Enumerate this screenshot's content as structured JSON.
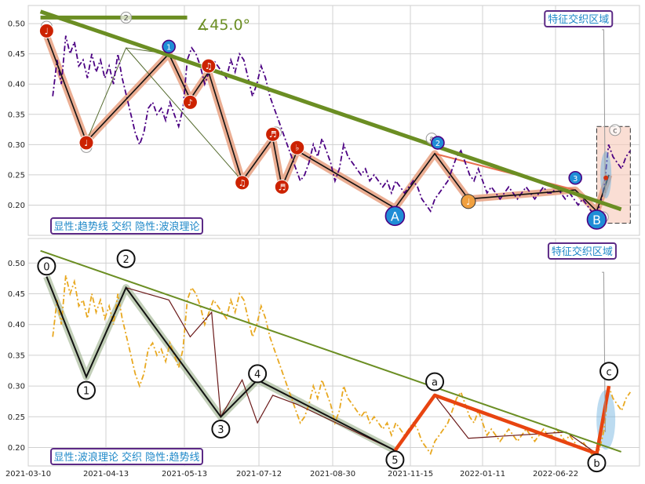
{
  "chart_data": [
    {
      "type": "line",
      "panel": "top",
      "x_ticks": [
        "2021-03-10",
        "2021-04-13",
        "2021-05-13",
        "2021-07-12",
        "2021-08-30",
        "2021-11-15",
        "2022-01-11",
        "2022-06-22"
      ],
      "ylim": [
        0.15,
        0.53
      ],
      "yticks": [
        0.2,
        0.25,
        0.3,
        0.35,
        0.4,
        0.45,
        0.5
      ],
      "grid": true,
      "annotation_angle": "∡45.0°",
      "zone_label": "特征交织区域",
      "mode_label": "显性:趋势线 交织 隐性:波浪理论",
      "price_series": {
        "name": "",
        "color": "#4b0082",
        "style": "dash-dot",
        "values": [
          0.38,
          0.44,
          0.4,
          0.48,
          0.45,
          0.47,
          0.43,
          0.44,
          0.41,
          0.45,
          0.42,
          0.44,
          0.41,
          0.43,
          0.4,
          0.45,
          0.41,
          0.38,
          0.35,
          0.32,
          0.3,
          0.32,
          0.36,
          0.37,
          0.35,
          0.36,
          0.34,
          0.37,
          0.35,
          0.33,
          0.36,
          0.44,
          0.46,
          0.45,
          0.43,
          0.4,
          0.42,
          0.44,
          0.43,
          0.42,
          0.41,
          0.44,
          0.42,
          0.45,
          0.44,
          0.41,
          0.38,
          0.4,
          0.43,
          0.41,
          0.38,
          0.36,
          0.34,
          0.32,
          0.3,
          0.28,
          0.26,
          0.24,
          0.25,
          0.27,
          0.3,
          0.28,
          0.31,
          0.29,
          0.27,
          0.24,
          0.26,
          0.3,
          0.28,
          0.27,
          0.26,
          0.25,
          0.26,
          0.24,
          0.25,
          0.24,
          0.23,
          0.24,
          0.22,
          0.24,
          0.23,
          0.22,
          0.23,
          0.24,
          0.23,
          0.21,
          0.2,
          0.19,
          0.21,
          0.22,
          0.23,
          0.24,
          0.26,
          0.28,
          0.29,
          0.27,
          0.25,
          0.24,
          0.26,
          0.24,
          0.22,
          0.23,
          0.22,
          0.21,
          0.22,
          0.23,
          0.22,
          0.21,
          0.22,
          0.23,
          0.22,
          0.21,
          0.22,
          0.23,
          0.22,
          0.22,
          0.23,
          0.22,
          0.21,
          0.22,
          0.21,
          0.2,
          0.21,
          0.2,
          0.19,
          0.18,
          0.2,
          0.23,
          0.3,
          0.28,
          0.27,
          0.26,
          0.28,
          0.29
        ]
      },
      "trendline": {
        "x0": 0.02,
        "y0": 0.52,
        "x1": 0.97,
        "y1": 0.193
      },
      "trend_stub": {
        "x0": 0.02,
        "x1": 0.26,
        "y": 0.51
      },
      "wave_path": [
        [
          0.03,
          0.48
        ],
        [
          0.095,
          0.305
        ],
        [
          0.23,
          0.45
        ],
        [
          0.265,
          0.375
        ],
        [
          0.295,
          0.42
        ],
        [
          0.35,
          0.24
        ],
        [
          0.4,
          0.31
        ],
        [
          0.415,
          0.23
        ],
        [
          0.44,
          0.29
        ],
        [
          0.6,
          0.195
        ],
        [
          0.665,
          0.285
        ],
        [
          0.72,
          0.21
        ],
        [
          0.895,
          0.225
        ],
        [
          0.93,
          0.19
        ],
        [
          0.95,
          0.25
        ]
      ],
      "markers_red": [
        {
          "x": 0.03,
          "y": 0.488,
          "label": "♩"
        },
        {
          "x": 0.095,
          "y": 0.303,
          "label": "♩"
        },
        {
          "x": 0.265,
          "y": 0.37,
          "label": "♪"
        },
        {
          "x": 0.295,
          "y": 0.43,
          "label": "♫"
        },
        {
          "x": 0.35,
          "y": 0.237,
          "label": "♫"
        },
        {
          "x": 0.4,
          "y": 0.317,
          "label": "♬"
        },
        {
          "x": 0.415,
          "y": 0.23,
          "label": "♬"
        },
        {
          "x": 0.44,
          "y": 0.295,
          "label": "♭"
        }
      ],
      "markers_blue": [
        {
          "x": 0.23,
          "y": 0.462,
          "label": "1",
          "r": 8
        },
        {
          "x": 0.67,
          "y": 0.303,
          "label": "2",
          "r": 8
        },
        {
          "x": 0.895,
          "y": 0.245,
          "label": "3",
          "r": 8
        },
        {
          "x": 0.6,
          "y": 0.182,
          "label": "A",
          "r": 12
        },
        {
          "x": 0.93,
          "y": 0.176,
          "label": "B",
          "r": 12
        }
      ],
      "markers_orange": [
        {
          "x": 0.72,
          "y": 0.206,
          "label": "♩"
        }
      ],
      "markers_hollow": [
        {
          "x": 0.16,
          "y": 0.51,
          "label": "2"
        },
        {
          "x": 0.66,
          "y": 0.31,
          "label": "a"
        },
        {
          "x": 0.96,
          "y": 0.324,
          "label": "c"
        },
        {
          "x": 0.03,
          "y": 0.495,
          "label": "0"
        },
        {
          "x": 0.095,
          "y": 0.296,
          "label": ""
        },
        {
          "x": 0.405,
          "y": 0.32,
          "label": ""
        },
        {
          "x": 0.94,
          "y": 0.18,
          "label": ""
        }
      ]
    },
    {
      "type": "line",
      "panel": "bottom",
      "x_ticks": [
        "2021-03-10",
        "2021-04-13",
        "2021-05-13",
        "2021-07-12",
        "2021-08-30",
        "2021-11-15",
        "2022-01-11",
        "2022-06-22"
      ],
      "ylim": [
        0.17,
        0.54
      ],
      "yticks": [
        0.2,
        0.25,
        0.3,
        0.35,
        0.4,
        0.45,
        0.5
      ],
      "grid": true,
      "zone_label": "特征交织区域",
      "mode_label": "显性:波浪理论 交织 隐性:趋势线",
      "price_series": {
        "name": "",
        "color": "#e8a820",
        "style": "dash-dot",
        "values": [
          0.38,
          0.44,
          0.4,
          0.48,
          0.45,
          0.47,
          0.43,
          0.44,
          0.41,
          0.45,
          0.42,
          0.44,
          0.41,
          0.43,
          0.4,
          0.45,
          0.41,
          0.38,
          0.35,
          0.32,
          0.3,
          0.32,
          0.36,
          0.37,
          0.35,
          0.36,
          0.34,
          0.37,
          0.35,
          0.33,
          0.36,
          0.44,
          0.46,
          0.45,
          0.43,
          0.4,
          0.42,
          0.44,
          0.43,
          0.42,
          0.41,
          0.44,
          0.42,
          0.45,
          0.44,
          0.41,
          0.38,
          0.4,
          0.43,
          0.41,
          0.38,
          0.36,
          0.34,
          0.32,
          0.3,
          0.28,
          0.26,
          0.24,
          0.25,
          0.27,
          0.3,
          0.28,
          0.31,
          0.29,
          0.27,
          0.24,
          0.26,
          0.3,
          0.28,
          0.27,
          0.26,
          0.25,
          0.26,
          0.24,
          0.25,
          0.24,
          0.23,
          0.24,
          0.22,
          0.24,
          0.23,
          0.22,
          0.23,
          0.24,
          0.23,
          0.21,
          0.2,
          0.19,
          0.21,
          0.22,
          0.23,
          0.24,
          0.26,
          0.28,
          0.29,
          0.27,
          0.25,
          0.24,
          0.26,
          0.24,
          0.22,
          0.23,
          0.22,
          0.21,
          0.22,
          0.23,
          0.22,
          0.21,
          0.22,
          0.23,
          0.22,
          0.21,
          0.22,
          0.23,
          0.22,
          0.22,
          0.23,
          0.22,
          0.21,
          0.22,
          0.21,
          0.2,
          0.21,
          0.2,
          0.19,
          0.18,
          0.2,
          0.23,
          0.3,
          0.28,
          0.27,
          0.26,
          0.28,
          0.29
        ]
      },
      "trendline": {
        "x0": 0.02,
        "y0": 0.52,
        "x1": 0.97,
        "y1": 0.193
      },
      "wave_black": [
        [
          0.03,
          0.478
        ],
        [
          0.095,
          0.315
        ],
        [
          0.16,
          0.46
        ],
        [
          0.315,
          0.25
        ],
        [
          0.375,
          0.31
        ],
        [
          0.6,
          0.195
        ]
      ],
      "wave_thin": [
        [
          0.16,
          0.46
        ],
        [
          0.23,
          0.44
        ],
        [
          0.265,
          0.38
        ],
        [
          0.3,
          0.42
        ],
        [
          0.315,
          0.25
        ],
        [
          0.35,
          0.31
        ],
        [
          0.375,
          0.24
        ],
        [
          0.4,
          0.285
        ],
        [
          0.44,
          0.27
        ],
        [
          0.6,
          0.195
        ],
        [
          0.665,
          0.285
        ],
        [
          0.72,
          0.215
        ],
        [
          0.88,
          0.225
        ],
        [
          0.93,
          0.19
        ]
      ],
      "wave_red": [
        [
          0.6,
          0.195
        ],
        [
          0.665,
          0.285
        ],
        [
          0.93,
          0.19
        ],
        [
          0.95,
          0.3
        ]
      ],
      "labels": [
        {
          "x": 0.03,
          "y": 0.495,
          "label": "0"
        },
        {
          "x": 0.095,
          "y": 0.293,
          "label": "1"
        },
        {
          "x": 0.16,
          "y": 0.507,
          "label": "2"
        },
        {
          "x": 0.315,
          "y": 0.23,
          "label": "3"
        },
        {
          "x": 0.375,
          "y": 0.32,
          "label": "4"
        },
        {
          "x": 0.6,
          "y": 0.18,
          "label": "5"
        },
        {
          "x": 0.665,
          "y": 0.307,
          "label": "a"
        },
        {
          "x": 0.93,
          "y": 0.175,
          "label": "b"
        },
        {
          "x": 0.95,
          "y": 0.324,
          "label": "c"
        }
      ]
    }
  ],
  "colors": {
    "grid": "#d0d0d0",
    "trend": "#6b8e23",
    "wave_shadow": "#e8a080",
    "zone_border": "#5c2a86",
    "zone_text": "#1e88c8",
    "red_marker": "#cc2200",
    "blue_marker": "#1f8dd6",
    "orange_marker": "#f0a040",
    "bottom_wave_red": "#e84410"
  }
}
